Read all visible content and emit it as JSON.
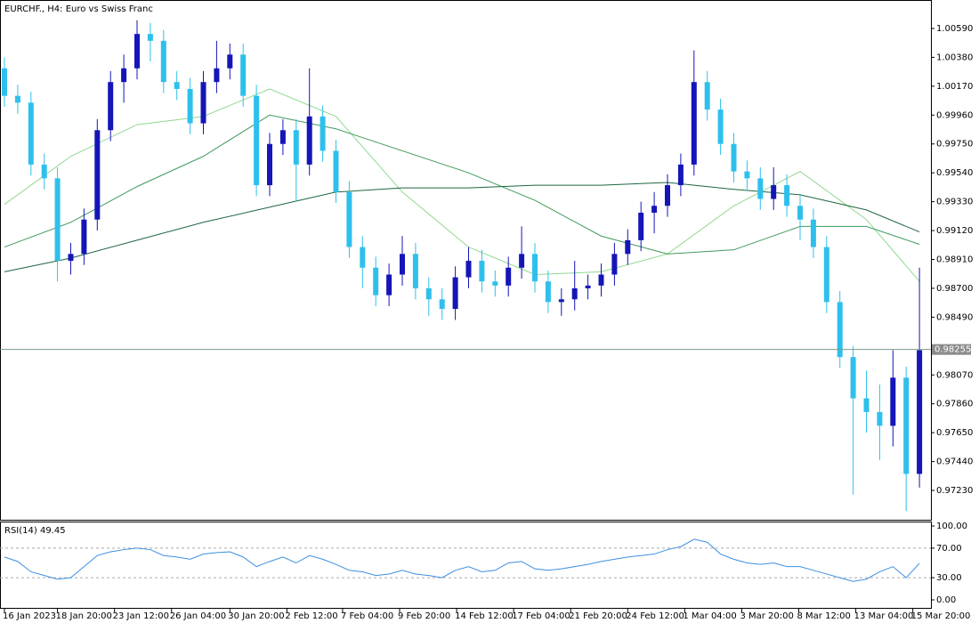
{
  "chart_data": [
    {
      "type": "candlestick",
      "title": "EURCHF., H4:  Euro vs Swiss Franc",
      "up_color": "#1515b8",
      "down_color": "#2ec0ec",
      "candles": {
        "open": [
          1.003,
          1.001,
          1.0005,
          0.996,
          0.995,
          0.989,
          0.9895,
          0.992,
          0.9985,
          1.002,
          1.003,
          1.0055,
          1.005,
          1.002,
          1.0015,
          0.999,
          1.002,
          1.003,
          1.004,
          1.001,
          0.9945,
          0.9975,
          0.9985,
          0.996,
          0.9995,
          0.997,
          0.994,
          0.99,
          0.9885,
          0.9865,
          0.988,
          0.9895,
          0.987,
          0.9862,
          0.9855,
          0.9878,
          0.989,
          0.9875,
          0.9872,
          0.9885,
          0.9895,
          0.9875,
          0.986,
          0.9862,
          0.987,
          0.9872,
          0.988,
          0.9895,
          0.9905,
          0.9925,
          0.993,
          0.9945,
          0.996,
          1.002,
          1.0,
          0.9975,
          0.9955,
          0.995,
          0.9935,
          0.9945,
          0.993,
          0.992,
          0.99,
          0.986,
          0.982,
          0.979,
          0.978,
          0.977,
          0.9805,
          0.9735
        ],
        "high": [
          1.0038,
          1.0018,
          1.0013,
          0.9968,
          0.9958,
          0.9903,
          0.9928,
          0.9993,
          1.0028,
          1.004,
          1.0065,
          1.0063,
          1.0058,
          1.0028,
          1.0023,
          1.0028,
          1.005,
          1.0048,
          1.0048,
          1.0018,
          0.9983,
          0.9993,
          0.9993,
          1.003,
          1.0003,
          0.9978,
          0.9948,
          0.9908,
          0.9893,
          0.9888,
          0.9908,
          0.9903,
          0.9878,
          0.987,
          0.9886,
          0.99,
          0.9898,
          0.9883,
          0.9893,
          0.9915,
          0.9903,
          0.9883,
          0.987,
          0.989,
          0.988,
          0.9888,
          0.9903,
          0.9913,
          0.9933,
          0.994,
          0.9953,
          0.9968,
          1.0043,
          1.0028,
          1.0008,
          0.9983,
          0.9963,
          0.9958,
          0.9958,
          0.9953,
          0.9938,
          0.9928,
          0.9908,
          0.9868,
          0.9828,
          0.981,
          0.98,
          0.9825,
          0.9813,
          0.9885
        ],
        "low": [
          1.0002,
          0.9997,
          0.9952,
          0.9942,
          0.9875,
          0.988,
          0.9887,
          0.9912,
          0.9977,
          1.0005,
          1.0022,
          1.0035,
          1.0012,
          1.0007,
          0.9982,
          0.9982,
          1.0012,
          1.0022,
          1.0002,
          0.9937,
          0.9937,
          0.9967,
          0.9933,
          0.9952,
          0.9962,
          0.9932,
          0.9892,
          0.987,
          0.9857,
          0.9857,
          0.9872,
          0.9862,
          0.985,
          0.9847,
          0.9847,
          0.987,
          0.9867,
          0.9864,
          0.9864,
          0.9877,
          0.9867,
          0.9852,
          0.985,
          0.9854,
          0.9862,
          0.9864,
          0.9872,
          0.9887,
          0.9897,
          0.991,
          0.9922,
          0.9937,
          0.9952,
          0.9992,
          0.9967,
          0.9947,
          0.9942,
          0.9927,
          0.9927,
          0.9922,
          0.9905,
          0.9892,
          0.9852,
          0.9812,
          0.972,
          0.9765,
          0.9745,
          0.9755,
          0.9708,
          0.9725
        ],
        "close": [
          1.001,
          1.0005,
          0.996,
          0.995,
          0.989,
          0.9895,
          0.992,
          0.9985,
          1.002,
          1.003,
          1.0055,
          1.005,
          1.002,
          1.0015,
          0.999,
          1.002,
          1.003,
          1.004,
          1.001,
          0.9945,
          0.9975,
          0.9985,
          0.996,
          0.9995,
          0.997,
          0.994,
          0.99,
          0.9885,
          0.9865,
          0.988,
          0.9895,
          0.987,
          0.9862,
          0.9855,
          0.9878,
          0.989,
          0.9875,
          0.9872,
          0.9885,
          0.9895,
          0.9875,
          0.986,
          0.9862,
          0.987,
          0.9872,
          0.988,
          0.9895,
          0.9905,
          0.9925,
          0.993,
          0.9945,
          0.996,
          1.002,
          1.0,
          0.9975,
          0.9955,
          0.995,
          0.9935,
          0.9945,
          0.993,
          0.992,
          0.99,
          0.986,
          0.982,
          0.979,
          0.978,
          0.977,
          0.9805,
          0.9735,
          0.9825
        ]
      },
      "moving_averages": [
        {
          "color": "#90d890",
          "x": [
            0,
            5,
            10,
            15,
            20,
            25,
            30,
            35,
            40,
            45,
            50,
            55,
            60,
            65,
            69
          ],
          "values": [
            0.9931,
            0.9966,
            0.9989,
            0.9995,
            1.0015,
            0.9995,
            0.994,
            0.99,
            0.988,
            0.9882,
            0.9895,
            0.993,
            0.9955,
            0.992,
            0.9875
          ]
        },
        {
          "color": "#3f9a5c",
          "x": [
            0,
            5,
            10,
            15,
            20,
            25,
            30,
            35,
            40,
            45,
            50,
            55,
            60,
            65,
            69
          ],
          "values": [
            0.99,
            0.9918,
            0.9944,
            0.9966,
            0.9996,
            0.9986,
            0.997,
            0.9954,
            0.9934,
            0.9908,
            0.9895,
            0.9898,
            0.9915,
            0.9915,
            0.9902
          ]
        },
        {
          "color": "#1d6640",
          "x": [
            0,
            5,
            10,
            15,
            20,
            25,
            30,
            35,
            40,
            45,
            50,
            55,
            60,
            65,
            69
          ],
          "values": [
            0.9882,
            0.9892,
            0.9905,
            0.9918,
            0.9929,
            0.994,
            0.9943,
            0.9943,
            0.9945,
            0.9945,
            0.9947,
            0.9942,
            0.9938,
            0.9927,
            0.9911
          ]
        }
      ],
      "current_price": {
        "value": 0.98255,
        "label": "0.98255"
      },
      "ylim": [
        0.97023,
        1.00784
      ],
      "yticks": [
        {
          "value": 1.0059,
          "label": "1.00590"
        },
        {
          "value": 1.0038,
          "label": "1.00380"
        },
        {
          "value": 1.0017,
          "label": "1.00170"
        },
        {
          "value": 0.9996,
          "label": "0.99960"
        },
        {
          "value": 0.9975,
          "label": "0.99750"
        },
        {
          "value": 0.9954,
          "label": "0.99540"
        },
        {
          "value": 0.9933,
          "label": "0.99330"
        },
        {
          "value": 0.9912,
          "label": "0.99120"
        },
        {
          "value": 0.9891,
          "label": "0.98910"
        },
        {
          "value": 0.987,
          "label": "0.98700"
        },
        {
          "value": 0.9849,
          "label": "0.98490"
        },
        {
          "value": 0.9807,
          "label": "0.98070"
        },
        {
          "value": 0.9786,
          "label": "0.97860"
        },
        {
          "value": 0.9765,
          "label": "0.97650"
        },
        {
          "value": 0.9744,
          "label": "0.97440"
        },
        {
          "value": 0.9723,
          "label": "0.97230"
        }
      ],
      "xticks": [
        {
          "value": 0,
          "label": "16 Jan 2023"
        },
        {
          "value": 4.0,
          "label": "18 Jan 20:00"
        },
        {
          "value": 8.3,
          "label": "23 Jan 12:00"
        },
        {
          "value": 12.6,
          "label": "26 Jan 04:00"
        },
        {
          "value": 17.0,
          "label": "30 Jan 20:00"
        },
        {
          "value": 21.3,
          "label": "2 Feb 12:00"
        },
        {
          "value": 25.5,
          "label": "7 Feb 04:00"
        },
        {
          "value": 29.8,
          "label": "9 Feb 20:00"
        },
        {
          "value": 34.1,
          "label": "14 Feb 12:00"
        },
        {
          "value": 38.4,
          "label": "17 Feb 04:00"
        },
        {
          "value": 42.7,
          "label": "21 Feb 20:00"
        },
        {
          "value": 47.0,
          "label": "24 Feb 12:00"
        },
        {
          "value": 51.3,
          "label": "1 Mar 04:00"
        },
        {
          "value": 55.6,
          "label": "3 Mar 20:00"
        },
        {
          "value": 59.9,
          "label": "8 Mar 12:00"
        },
        {
          "value": 64.2,
          "label": "13 Mar 04:00"
        },
        {
          "value": 68.5,
          "label": "15 Mar 20:00"
        }
      ]
    },
    {
      "type": "line",
      "title": "RSI(14) 49.45",
      "color": "#3d8fe0",
      "values": [
        58,
        52,
        38,
        33,
        28,
        30,
        45,
        60,
        65,
        68,
        70,
        68,
        60,
        58,
        55,
        62,
        64,
        65,
        58,
        45,
        52,
        58,
        50,
        60,
        55,
        48,
        40,
        38,
        33,
        35,
        40,
        35,
        33,
        30,
        40,
        45,
        38,
        40,
        50,
        52,
        42,
        40,
        42,
        45,
        48,
        52,
        55,
        58,
        60,
        62,
        68,
        72,
        82,
        78,
        62,
        55,
        50,
        48,
        50,
        45,
        45,
        40,
        35,
        30,
        25,
        28,
        38,
        45,
        30,
        49.45
      ],
      "ylim": [
        0,
        100
      ],
      "yticks": [
        {
          "value": 100,
          "label": "100.00"
        },
        {
          "value": 70,
          "label": "70.00"
        },
        {
          "value": 30,
          "label": "30.00"
        },
        {
          "value": 0,
          "label": "0.00"
        }
      ]
    }
  ]
}
